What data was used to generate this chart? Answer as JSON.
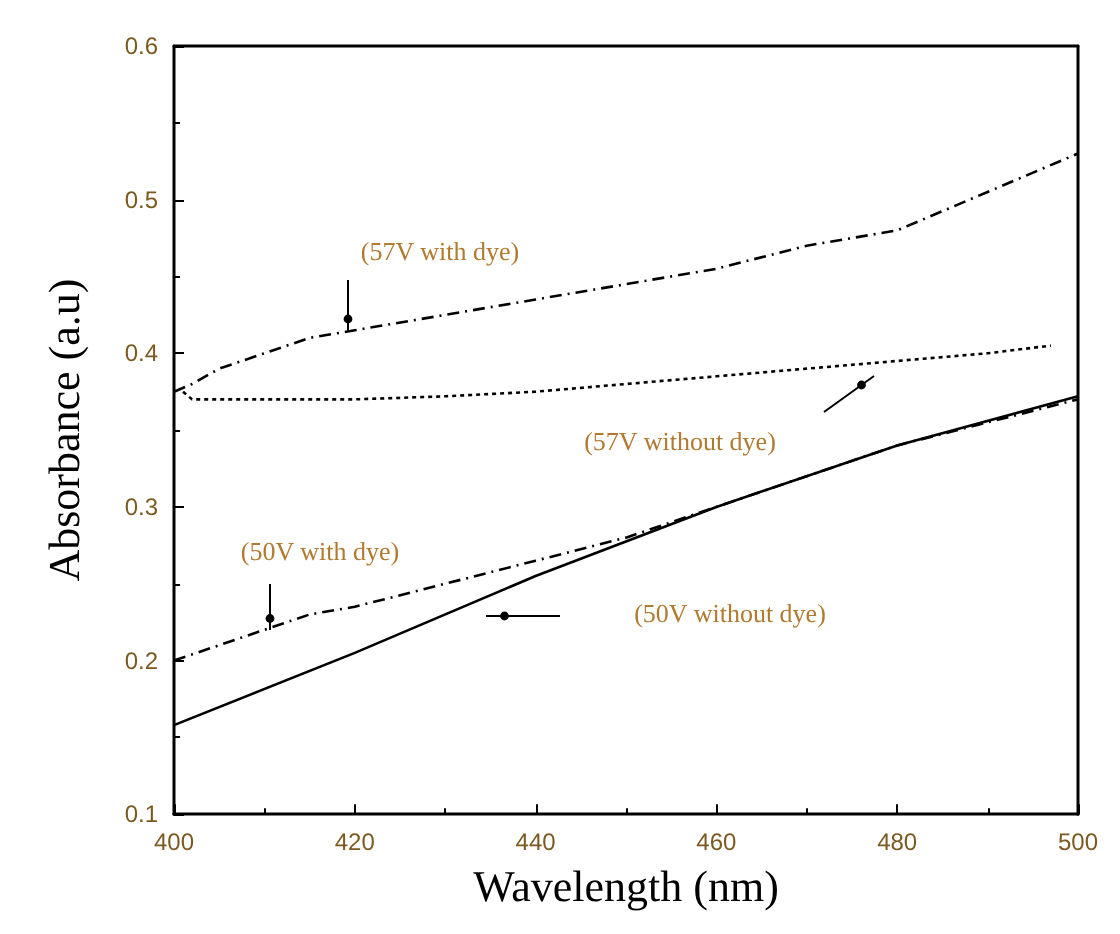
{
  "chart_data": {
    "type": "line",
    "xlabel": "Wavelength (nm)",
    "ylabel": "Absorbance (a.u)",
    "xlim": [
      400,
      500
    ],
    "xticks": [
      400,
      420,
      440,
      460,
      480,
      500
    ],
    "ylim": [
      0.1,
      0.6
    ],
    "yticks": [
      0.1,
      0.2,
      0.3,
      0.4,
      0.5,
      0.6
    ],
    "grid": false,
    "marker": "none",
    "series": [
      {
        "color": "#000000",
        "line_style": "dashed",
        "x": [
          400,
          402,
          405,
          410,
          415,
          420,
          430,
          440,
          450,
          460,
          470,
          480,
          490,
          500
        ],
        "values": [
          0.375,
          0.38,
          0.39,
          0.4,
          0.41,
          0.415,
          0.425,
          0.435,
          0.445,
          0.455,
          0.47,
          0.48,
          0.505,
          0.53
        ]
      },
      {
        "color": "#000000",
        "line_style": "dotted",
        "x": [
          401,
          402,
          410,
          420,
          430,
          440,
          450,
          460,
          470,
          480,
          490,
          497
        ],
        "values": [
          0.375,
          0.37,
          0.37,
          0.37,
          0.372,
          0.375,
          0.38,
          0.385,
          0.39,
          0.395,
          0.4,
          0.405
        ]
      },
      {
        "color": "#000000",
        "line_style": "dashed",
        "x": [
          400,
          405,
          410,
          415,
          420,
          430,
          440,
          450,
          460,
          470,
          480,
          490,
          500
        ],
        "values": [
          0.2,
          0.21,
          0.22,
          0.23,
          0.235,
          0.25,
          0.265,
          0.28,
          0.3,
          0.32,
          0.34,
          0.355,
          0.37
        ]
      },
      {
        "color": "#000000",
        "line_style": "solid",
        "x": [
          400,
          420,
          440,
          460,
          480,
          500
        ],
        "values": [
          0.158,
          0.205,
          0.255,
          0.3,
          0.34,
          0.372
        ]
      }
    ],
    "annotations": [
      "(57V with dye)",
      "(57V without dye)",
      "(50V with dye)",
      "(50V without dye)"
    ]
  }
}
